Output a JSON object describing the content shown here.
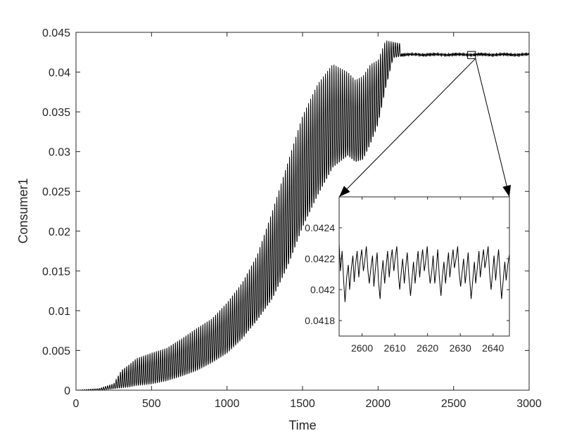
{
  "chart_data": [
    {
      "type": "line",
      "xlabel": "Time",
      "ylabel": "Consumer1",
      "xlim": [
        0,
        3000
      ],
      "ylim": [
        0,
        0.045
      ],
      "xticks": [
        0,
        500,
        1000,
        1500,
        2000,
        2500,
        3000
      ],
      "xtick_labels": [
        "0",
        "500",
        "1000",
        "1500",
        "2000",
        "2500",
        "3000"
      ],
      "yticks": [
        0,
        0.005,
        0.01,
        0.015,
        0.02,
        0.025,
        0.03,
        0.035,
        0.04,
        0.045
      ],
      "ytick_labels": [
        "0",
        "0.005",
        "0.01",
        "0.015",
        "0.02",
        "0.025",
        "0.03",
        "0.035",
        "0.04",
        "0.045"
      ],
      "grid": false,
      "series_color": "#000000",
      "envelope": {
        "time": [
          0,
          150,
          250,
          300,
          350,
          400,
          500,
          600,
          700,
          800,
          900,
          1000,
          1100,
          1200,
          1300,
          1400,
          1500,
          1600,
          1700,
          1800,
          1850,
          1900,
          1950,
          2000,
          2050,
          2100,
          2150
        ],
        "upper": [
          0,
          0.0002,
          0.0008,
          0.0025,
          0.0032,
          0.004,
          0.0047,
          0.0053,
          0.0065,
          0.0078,
          0.009,
          0.011,
          0.0135,
          0.017,
          0.0225,
          0.0285,
          0.0345,
          0.0385,
          0.041,
          0.04,
          0.039,
          0.0395,
          0.041,
          0.0415,
          0.044,
          0.0438,
          0.0436
        ],
        "lower": [
          0,
          0,
          0.0002,
          0.0003,
          0.0004,
          0.0006,
          0.0008,
          0.0012,
          0.0018,
          0.0025,
          0.0035,
          0.0047,
          0.0065,
          0.0088,
          0.0115,
          0.0155,
          0.0205,
          0.0245,
          0.028,
          0.0295,
          0.0287,
          0.029,
          0.031,
          0.0335,
          0.038,
          0.0418,
          0.042
        ]
      },
      "steady_state": {
        "from": 2150,
        "to": 3000,
        "mean": 0.0422,
        "amplitude": 0.0003
      },
      "zoom_box": {
        "x": [
          2593,
          2645
        ],
        "y": [
          0.0417,
          0.0426
        ]
      }
    },
    {
      "type": "line",
      "role": "inset",
      "xlim": [
        2593,
        2645
      ],
      "ylim": [
        0.0417,
        0.0426
      ],
      "xticks": [
        2600,
        2610,
        2620,
        2630,
        2640
      ],
      "xtick_labels": [
        "2600",
        "2610",
        "2620",
        "2630",
        "2640"
      ],
      "yticks": [
        0.0418,
        0.042,
        0.0422,
        0.0424
      ],
      "ytick_labels": [
        "0.0418",
        "0.042",
        "0.0422",
        "0.0424"
      ],
      "series_color": "#000000",
      "x": [
        2593.0,
        2593.4,
        2593.9,
        2594.4,
        2594.8,
        2595.3,
        2595.8,
        2596.2,
        2596.7,
        2597.2,
        2597.6,
        2598.0,
        2598.5,
        2599.0,
        2599.4,
        2599.9,
        2600.4,
        2600.8,
        2601.3,
        2601.8,
        2602.2,
        2602.7,
        2603.2,
        2603.6,
        2604.1,
        2604.6,
        2605.0,
        2605.5,
        2605.9,
        2606.4,
        2606.9,
        2607.3,
        2607.8,
        2608.3,
        2608.7,
        2609.2,
        2609.7,
        2610.1,
        2610.6,
        2611.1,
        2611.5,
        2612.0,
        2612.4,
        2612.9,
        2613.4,
        2613.8,
        2614.3,
        2614.8,
        2615.2,
        2615.7,
        2616.2,
        2616.6,
        2617.1,
        2617.6,
        2618.0,
        2618.5,
        2619.0,
        2619.4,
        2619.9,
        2620.3,
        2620.8,
        2621.3,
        2621.7,
        2622.2,
        2622.7,
        2623.1,
        2623.6,
        2624.1,
        2624.5,
        2625.0,
        2625.5,
        2625.9,
        2626.4,
        2626.8,
        2627.3,
        2627.8,
        2628.2,
        2628.7,
        2629.2,
        2629.6,
        2630.1,
        2630.6,
        2631.0,
        2631.5,
        2632.0,
        2632.4,
        2632.9,
        2633.3,
        2633.8,
        2634.3,
        2634.7,
        2635.2,
        2635.7,
        2636.1,
        2636.6,
        2637.1,
        2637.5,
        2638.0,
        2638.5,
        2638.9,
        2639.4,
        2639.9,
        2640.3,
        2640.8,
        2641.2,
        2641.7,
        2642.2,
        2642.6,
        2643.1,
        2643.6,
        2644.0,
        2644.5,
        2645.0
      ],
      "y": [
        0.0423,
        0.04212,
        0.04225,
        0.04205,
        0.04192,
        0.04208,
        0.04216,
        0.042,
        0.04213,
        0.04222,
        0.04205,
        0.04216,
        0.04225,
        0.04208,
        0.04218,
        0.04226,
        0.04212,
        0.04218,
        0.04228,
        0.04212,
        0.04204,
        0.04214,
        0.04222,
        0.04202,
        0.04214,
        0.04224,
        0.04206,
        0.04194,
        0.04208,
        0.04219,
        0.04204,
        0.04214,
        0.04225,
        0.04208,
        0.04218,
        0.04226,
        0.04212,
        0.0422,
        0.04228,
        0.0421,
        0.042,
        0.04212,
        0.0422,
        0.04204,
        0.04216,
        0.04224,
        0.04208,
        0.04196,
        0.04206,
        0.04218,
        0.04204,
        0.04214,
        0.04225,
        0.04208,
        0.04218,
        0.04226,
        0.04212,
        0.04218,
        0.04228,
        0.04214,
        0.04204,
        0.04212,
        0.04222,
        0.04204,
        0.04214,
        0.04226,
        0.04208,
        0.04196,
        0.04208,
        0.04218,
        0.04204,
        0.04214,
        0.04224,
        0.04208,
        0.04218,
        0.04226,
        0.04214,
        0.0422,
        0.04228,
        0.04212,
        0.04202,
        0.04212,
        0.0422,
        0.04204,
        0.04214,
        0.04224,
        0.04206,
        0.04194,
        0.04206,
        0.04218,
        0.04204,
        0.04214,
        0.04225,
        0.04208,
        0.04218,
        0.04226,
        0.04214,
        0.0422,
        0.04228,
        0.04212,
        0.042,
        0.04212,
        0.04222,
        0.04206,
        0.04216,
        0.04226,
        0.04208,
        0.04194,
        0.04206,
        0.04218,
        0.04206,
        0.04216,
        0.04223
      ]
    }
  ]
}
